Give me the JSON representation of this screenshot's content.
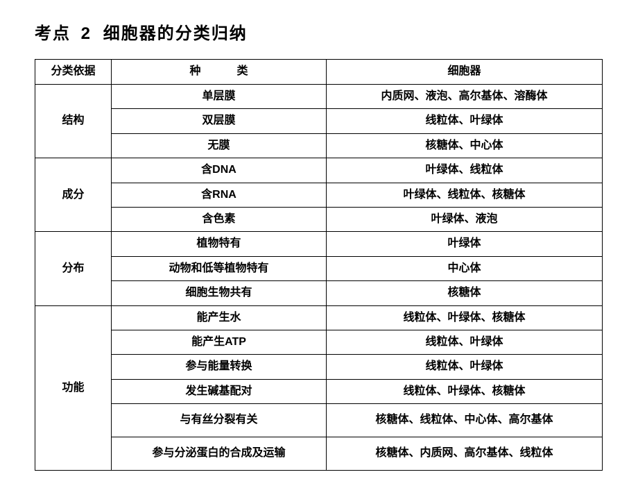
{
  "title_prefix": "考点",
  "title_num": "2",
  "title_main": "细胞器的分类归纳",
  "headers": {
    "basis": "分类依据",
    "type": "种　类",
    "organelle": "细胞器"
  },
  "groups": [
    {
      "label": "结构",
      "rows": [
        {
          "type": "单层膜",
          "organelle": "内质网、液泡、高尔基体、溶酶体"
        },
        {
          "type": "双层膜",
          "organelle": "线粒体、叶绿体"
        },
        {
          "type": "无膜",
          "organelle": "核糖体、中心体"
        }
      ]
    },
    {
      "label": "成分",
      "rows": [
        {
          "type": "含DNA",
          "organelle": "叶绿体、线粒体"
        },
        {
          "type": "含RNA",
          "organelle": "叶绿体、线粒体、核糖体"
        },
        {
          "type": "含色素",
          "organelle": "叶绿体、液泡"
        }
      ]
    },
    {
      "label": "分布",
      "rows": [
        {
          "type": "植物特有",
          "organelle": "叶绿体"
        },
        {
          "type": "动物和低等植物特有",
          "organelle": "中心体"
        },
        {
          "type": "细胞生物共有",
          "organelle": "核糖体"
        }
      ]
    },
    {
      "label": "功能",
      "rows": [
        {
          "type": "能产生水",
          "organelle": "线粒体、叶绿体、核糖体"
        },
        {
          "type": "能产生ATP",
          "organelle": "线粒体、叶绿体"
        },
        {
          "type": "参与能量转换",
          "organelle": "线粒体、叶绿体"
        },
        {
          "type": "发生碱基配对",
          "organelle": "线粒体、叶绿体、核糖体"
        },
        {
          "type": "与有丝分裂有关",
          "organelle": "核糖体、线粒体、中心体、高尔基体",
          "tall": true
        },
        {
          "type": "参与分泌蛋白的合成及运输",
          "organelle": "核糖体、内质网、高尔基体、线粒体",
          "tall": true
        }
      ]
    }
  ]
}
